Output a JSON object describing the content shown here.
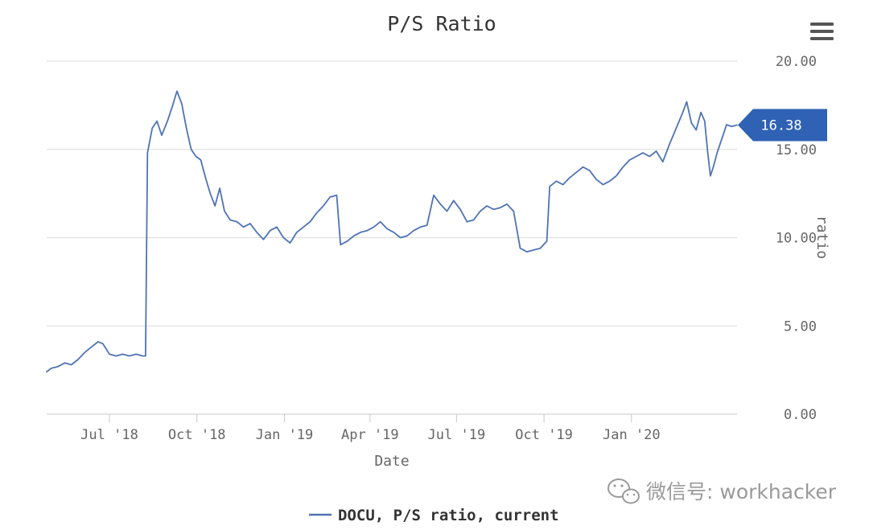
{
  "chart_data": {
    "type": "line",
    "title": "P/S Ratio",
    "xlabel": "Date",
    "ylabel": "ratio",
    "ylim": [
      0,
      20
    ],
    "y_ticks": [
      "0.00",
      "5.00",
      "10.00",
      "15.00",
      "20.00"
    ],
    "x_ticks": [
      "Jul '18",
      "Oct '18",
      "Jan '19",
      "Apr '19",
      "Jul '19",
      "Oct '19",
      "Jan '20"
    ],
    "x_tick_dates": [
      "2018-07-01",
      "2018-10-01",
      "2019-01-01",
      "2019-04-01",
      "2019-07-01",
      "2019-10-01",
      "2020-01-01"
    ],
    "x_range": [
      "2018-04-26",
      "2020-04-21"
    ],
    "grid": true,
    "legend_position": "bottom-center",
    "series": [
      {
        "name": "DOCU, P/S ratio, current",
        "color": "#4f73b4",
        "points": [
          [
            "2018-04-26",
            2.4
          ],
          [
            "2018-05-01",
            2.6
          ],
          [
            "2018-05-08",
            2.7
          ],
          [
            "2018-05-15",
            2.9
          ],
          [
            "2018-05-22",
            2.8
          ],
          [
            "2018-05-29",
            3.1
          ],
          [
            "2018-06-05",
            3.5
          ],
          [
            "2018-06-12",
            3.8
          ],
          [
            "2018-06-19",
            4.1
          ],
          [
            "2018-06-24",
            4.0
          ],
          [
            "2018-07-01",
            3.4
          ],
          [
            "2018-07-08",
            3.3
          ],
          [
            "2018-07-15",
            3.4
          ],
          [
            "2018-07-22",
            3.3
          ],
          [
            "2018-07-29",
            3.4
          ],
          [
            "2018-08-05",
            3.3
          ],
          [
            "2018-08-08",
            3.3
          ],
          [
            "2018-08-10",
            14.8
          ],
          [
            "2018-08-15",
            16.2
          ],
          [
            "2018-08-20",
            16.6
          ],
          [
            "2018-08-25",
            15.8
          ],
          [
            "2018-08-31",
            16.6
          ],
          [
            "2018-09-05",
            17.4
          ],
          [
            "2018-09-10",
            18.3
          ],
          [
            "2018-09-15",
            17.6
          ],
          [
            "2018-09-20",
            16.2
          ],
          [
            "2018-09-25",
            15.0
          ],
          [
            "2018-09-30",
            14.6
          ],
          [
            "2018-10-05",
            14.4
          ],
          [
            "2018-10-10",
            13.4
          ],
          [
            "2018-10-15",
            12.5
          ],
          [
            "2018-10-20",
            11.8
          ],
          [
            "2018-10-25",
            12.8
          ],
          [
            "2018-10-30",
            11.5
          ],
          [
            "2018-11-05",
            11.0
          ],
          [
            "2018-11-12",
            10.9
          ],
          [
            "2018-11-19",
            10.6
          ],
          [
            "2018-11-26",
            10.8
          ],
          [
            "2018-12-03",
            10.3
          ],
          [
            "2018-12-10",
            9.9
          ],
          [
            "2018-12-17",
            10.4
          ],
          [
            "2018-12-24",
            10.6
          ],
          [
            "2018-12-31",
            10.0
          ],
          [
            "2019-01-07",
            9.7
          ],
          [
            "2019-01-14",
            10.3
          ],
          [
            "2019-01-21",
            10.6
          ],
          [
            "2019-01-28",
            10.9
          ],
          [
            "2019-02-04",
            11.4
          ],
          [
            "2019-02-11",
            11.8
          ],
          [
            "2019-02-18",
            12.3
          ],
          [
            "2019-02-25",
            12.4
          ],
          [
            "2019-03-01",
            9.6
          ],
          [
            "2019-03-08",
            9.8
          ],
          [
            "2019-03-15",
            10.1
          ],
          [
            "2019-03-22",
            10.3
          ],
          [
            "2019-03-29",
            10.4
          ],
          [
            "2019-04-05",
            10.6
          ],
          [
            "2019-04-12",
            10.9
          ],
          [
            "2019-04-19",
            10.5
          ],
          [
            "2019-04-26",
            10.3
          ],
          [
            "2019-05-03",
            10.0
          ],
          [
            "2019-05-10",
            10.1
          ],
          [
            "2019-05-17",
            10.4
          ],
          [
            "2019-05-24",
            10.6
          ],
          [
            "2019-05-31",
            10.7
          ],
          [
            "2019-06-07",
            12.4
          ],
          [
            "2019-06-14",
            11.9
          ],
          [
            "2019-06-21",
            11.5
          ],
          [
            "2019-06-28",
            12.1
          ],
          [
            "2019-07-05",
            11.6
          ],
          [
            "2019-07-12",
            10.9
          ],
          [
            "2019-07-19",
            11.0
          ],
          [
            "2019-07-26",
            11.5
          ],
          [
            "2019-08-02",
            11.8
          ],
          [
            "2019-08-09",
            11.6
          ],
          [
            "2019-08-16",
            11.7
          ],
          [
            "2019-08-23",
            11.9
          ],
          [
            "2019-08-30",
            11.5
          ],
          [
            "2019-09-06",
            9.4
          ],
          [
            "2019-09-13",
            9.2
          ],
          [
            "2019-09-20",
            9.3
          ],
          [
            "2019-09-27",
            9.4
          ],
          [
            "2019-10-04",
            9.8
          ],
          [
            "2019-10-07",
            12.9
          ],
          [
            "2019-10-14",
            13.2
          ],
          [
            "2019-10-21",
            13.0
          ],
          [
            "2019-10-28",
            13.4
          ],
          [
            "2019-11-04",
            13.7
          ],
          [
            "2019-11-11",
            14.0
          ],
          [
            "2019-11-18",
            13.8
          ],
          [
            "2019-11-25",
            13.3
          ],
          [
            "2019-12-02",
            13.0
          ],
          [
            "2019-12-09",
            13.2
          ],
          [
            "2019-12-16",
            13.5
          ],
          [
            "2019-12-23",
            14.0
          ],
          [
            "2019-12-30",
            14.4
          ],
          [
            "2020-01-06",
            14.6
          ],
          [
            "2020-01-13",
            14.8
          ],
          [
            "2020-01-20",
            14.6
          ],
          [
            "2020-01-27",
            14.9
          ],
          [
            "2020-02-03",
            14.3
          ],
          [
            "2020-02-10",
            15.3
          ],
          [
            "2020-02-17",
            16.2
          ],
          [
            "2020-02-24",
            17.1
          ],
          [
            "2020-02-28",
            17.7
          ],
          [
            "2020-03-04",
            16.5
          ],
          [
            "2020-03-09",
            16.1
          ],
          [
            "2020-03-14",
            17.1
          ],
          [
            "2020-03-18",
            16.6
          ],
          [
            "2020-03-21",
            14.9
          ],
          [
            "2020-03-24",
            13.5
          ],
          [
            "2020-03-27",
            14.0
          ],
          [
            "2020-03-31",
            14.8
          ],
          [
            "2020-04-05",
            15.6
          ],
          [
            "2020-04-10",
            16.4
          ],
          [
            "2020-04-15",
            16.3
          ],
          [
            "2020-04-21",
            16.38
          ]
        ]
      }
    ],
    "current_value_label": "16.38"
  },
  "watermark": {
    "icon": "wechat-icon",
    "text": "微信号: workhacker"
  },
  "menu": {
    "icon": "hamburger-menu-icon"
  }
}
